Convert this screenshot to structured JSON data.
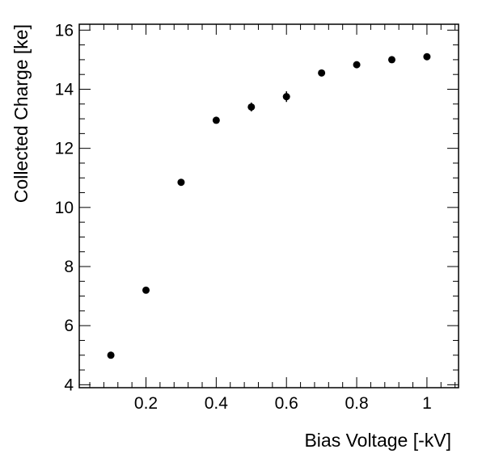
{
  "chart_data": {
    "type": "scatter",
    "xlabel": "Bias Voltage [-kV]",
    "ylabel": "Collected Charge [ke]",
    "xlim": [
      0.01,
      1.09
    ],
    "ylim": [
      3.9,
      16.2
    ],
    "x_ticks": [
      0.2,
      0.4,
      0.6,
      0.8,
      1
    ],
    "x_tick_labels": [
      "0.2",
      "0.4",
      "0.6",
      "0.8",
      "1"
    ],
    "y_ticks": [
      4,
      6,
      8,
      10,
      12,
      14,
      16
    ],
    "y_tick_labels": [
      "4",
      "6",
      "8",
      "10",
      "12",
      "14",
      "16"
    ],
    "grid": false,
    "series": [
      {
        "x": [
          0.1,
          0.2,
          0.3,
          0.4,
          0.5,
          0.6,
          0.7,
          0.8,
          0.9,
          1.0
        ],
        "y": [
          5.0,
          7.2,
          10.85,
          12.95,
          13.4,
          13.75,
          14.55,
          14.83,
          15.0,
          15.1
        ],
        "yerr": [
          0.05,
          0.08,
          0.08,
          0.08,
          0.15,
          0.18,
          0.08,
          0.08,
          0.08,
          0.08
        ]
      }
    ]
  }
}
